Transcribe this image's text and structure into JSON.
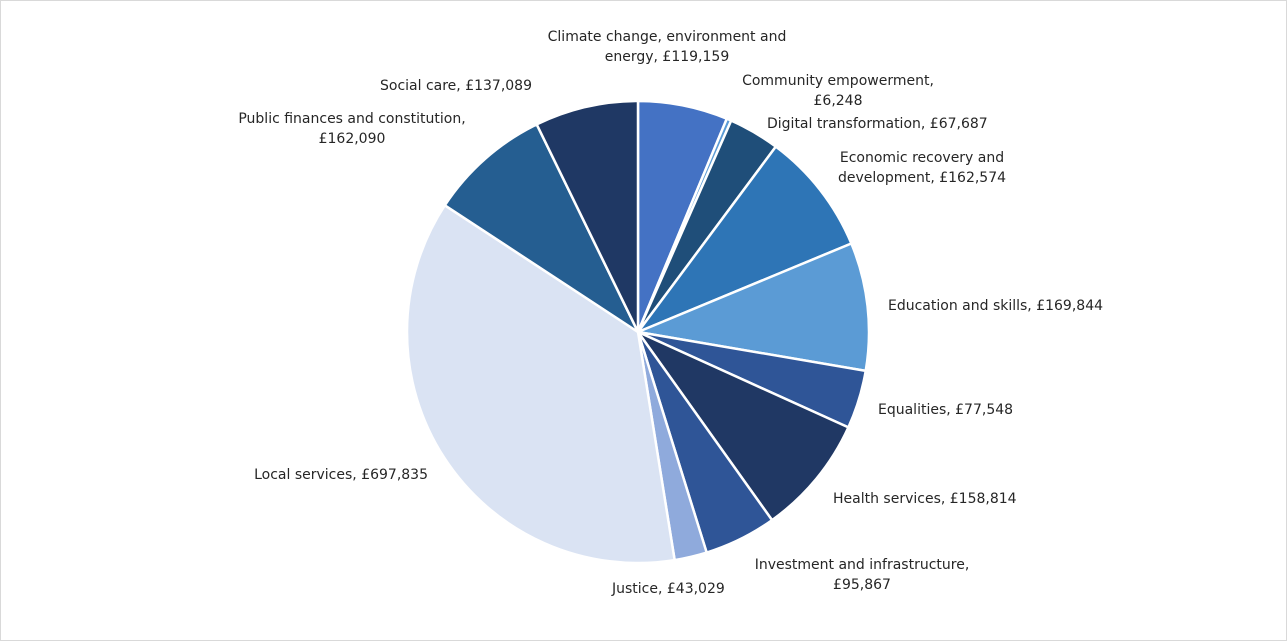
{
  "chart_data": {
    "type": "pie",
    "start_angle_deg": 90,
    "direction": "clockwise",
    "slices": [
      {
        "category": "Climate change, environment and energy",
        "value": 119159,
        "color": "#4472C4",
        "label_lines": [
          "Climate change, environment and",
          "energy, £119,159"
        ]
      },
      {
        "category": "Community empowerment",
        "value": 6248,
        "color": "#5B9BD5",
        "label_lines": [
          "Community empowerment,",
          "£6,248"
        ]
      },
      {
        "category": "Digital transformation",
        "value": 67687,
        "color": "#1F4E79",
        "label_lines": [
          "Digital transformation, £67,687"
        ]
      },
      {
        "category": "Economic recovery and development",
        "value": 162574,
        "color": "#2E75B6",
        "label_lines": [
          "Economic recovery and",
          "development, £162,574"
        ]
      },
      {
        "category": "Education and skills",
        "value": 169844,
        "color": "#5B9BD5",
        "label_lines": [
          "Education and skills, £169,844"
        ]
      },
      {
        "category": "Equalities",
        "value": 77548,
        "color": "#2F5597",
        "label_lines": [
          "Equalities, £77,548"
        ]
      },
      {
        "category": "Health services",
        "value": 158814,
        "color": "#203864",
        "label_lines": [
          "Health services, £158,814"
        ]
      },
      {
        "category": "Investment and infrastructure",
        "value": 95867,
        "color": "#2F5597",
        "label_lines": [
          "Investment and infrastructure,",
          "£95,867"
        ]
      },
      {
        "category": "Justice",
        "value": 43029,
        "color": "#8FAADC",
        "label_lines": [
          "Justice, £43,029"
        ]
      },
      {
        "category": "Local services",
        "value": 697835,
        "color": "#DAE3F3",
        "label_lines": [
          "Local services, £697,835"
        ]
      },
      {
        "category": "Public finances and constitution",
        "value": 162090,
        "color": "#255E91",
        "label_lines": [
          "Public finances and constitution,",
          "£162,090"
        ]
      },
      {
        "category": "Social care",
        "value": 137089,
        "color": "#1F3864",
        "label_lines": [
          "Social care, £137,089"
        ]
      }
    ]
  }
}
